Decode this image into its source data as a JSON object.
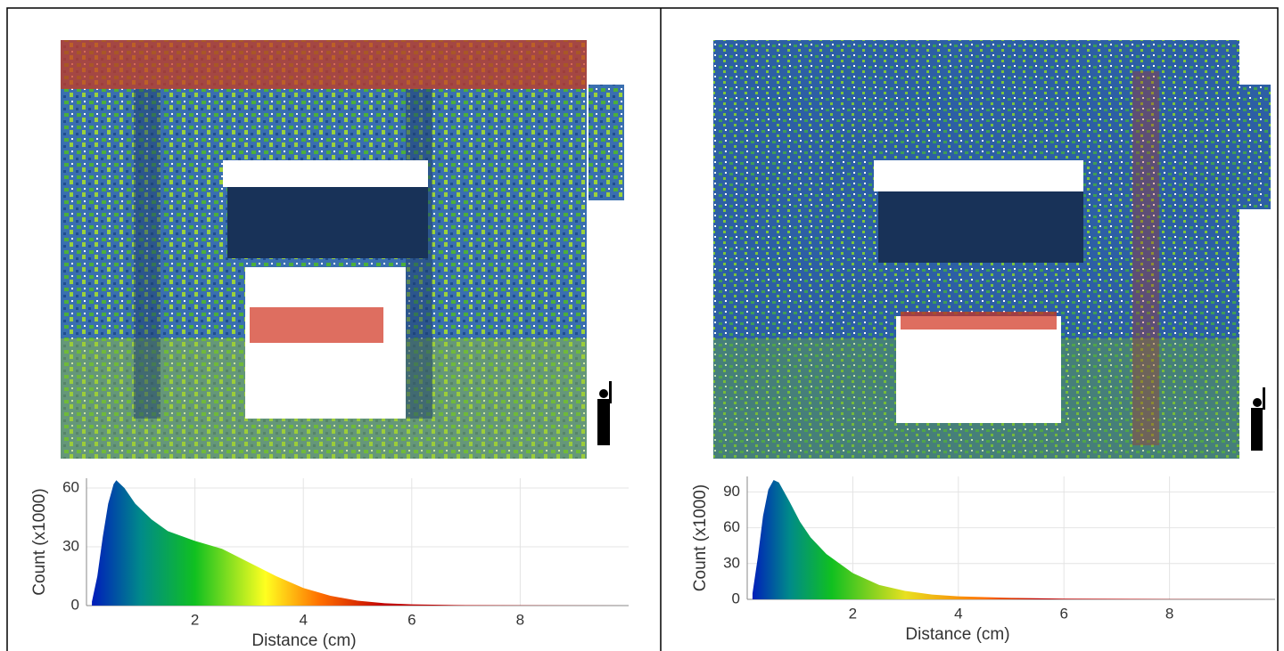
{
  "chart_data": [
    {
      "type": "area",
      "xlabel": "Distance (cm)",
      "ylabel": "Count (x1000)",
      "x": [
        0.1,
        0.2,
        0.3,
        0.4,
        0.5,
        0.55,
        0.7,
        0.9,
        1.2,
        1.5,
        2,
        2.5,
        3,
        3.5,
        4,
        4.5,
        5,
        5.5,
        6,
        7,
        8,
        10
      ],
      "values": [
        2,
        15,
        35,
        52,
        62,
        64,
        60,
        52,
        44,
        38,
        33,
        29,
        22,
        15,
        9,
        5,
        2.5,
        1.2,
        0.6,
        0.2,
        0.1,
        0
      ],
      "xlim": [
        0,
        10
      ],
      "ylim": [
        0,
        65
      ],
      "xticks": [
        2,
        4,
        6,
        8
      ],
      "yticks": [
        0,
        30,
        60
      ],
      "grid": true,
      "colorscale": [
        {
          "value": 0,
          "color": "#0010c0"
        },
        {
          "value": 1,
          "color": "#008a8a"
        },
        {
          "value": 2,
          "color": "#10c020"
        },
        {
          "value": 3.3,
          "color": "#ffff20"
        },
        {
          "value": 4.3,
          "color": "#ff7000"
        },
        {
          "value": 5.5,
          "color": "#c00000"
        }
      ]
    },
    {
      "type": "area",
      "xlabel": "Distance (cm)",
      "ylabel": "Count (x1000)",
      "x": [
        0.1,
        0.2,
        0.3,
        0.4,
        0.5,
        0.6,
        0.8,
        1,
        1.2,
        1.5,
        2,
        2.5,
        3,
        3.5,
        4,
        5,
        6,
        8,
        10
      ],
      "values": [
        5,
        35,
        70,
        92,
        100,
        98,
        82,
        65,
        52,
        38,
        22,
        12,
        7,
        4,
        2.5,
        1.2,
        0.6,
        0.2,
        0
      ],
      "xlim": [
        0,
        10
      ],
      "ylim": [
        0,
        103
      ],
      "xticks": [
        2,
        4,
        6,
        8
      ],
      "yticks": [
        0,
        30,
        60,
        90
      ],
      "grid": true,
      "colorscale": [
        {
          "value": 0,
          "color": "#0010c0"
        },
        {
          "value": 0.8,
          "color": "#008a8a"
        },
        {
          "value": 1.6,
          "color": "#10c020"
        },
        {
          "value": 3,
          "color": "#e8e020"
        },
        {
          "value": 4.5,
          "color": "#ff7000"
        },
        {
          "value": 5.5,
          "color": "#c00000"
        }
      ]
    }
  ]
}
